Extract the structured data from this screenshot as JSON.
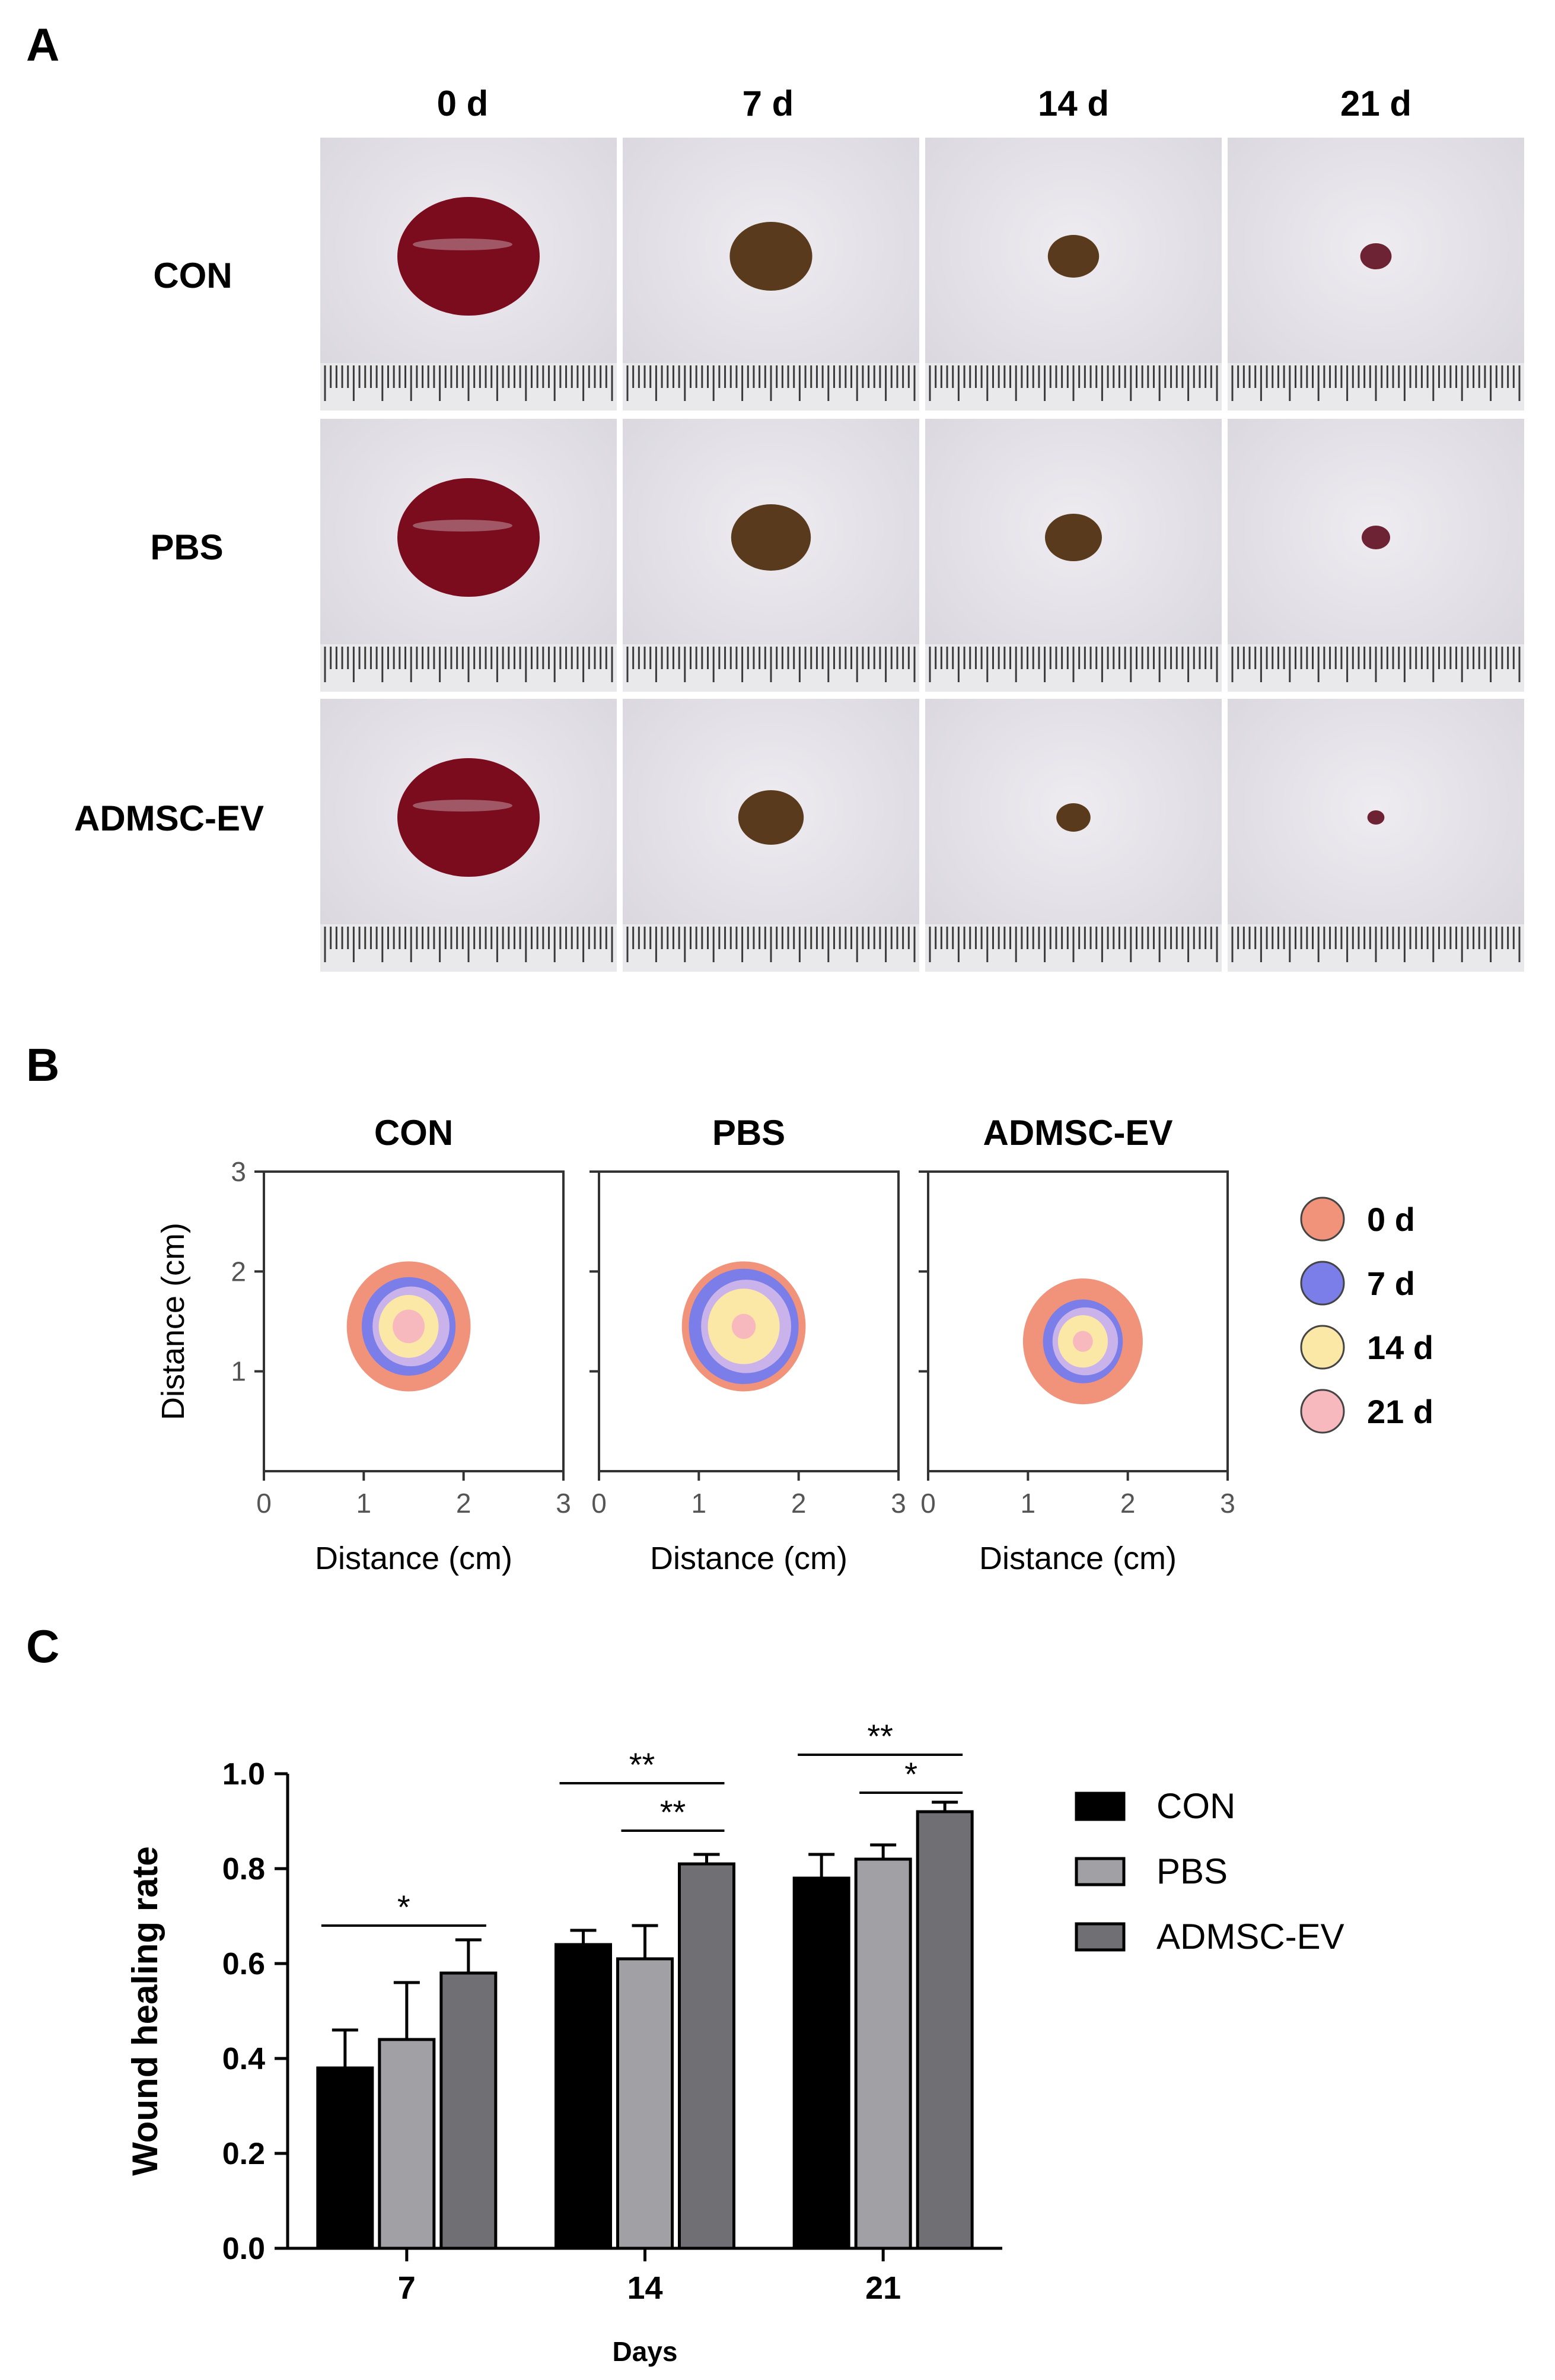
{
  "panels": {
    "a": "A",
    "b": "B",
    "c": "C"
  },
  "panel_a": {
    "columns": [
      "0 d",
      "7 d",
      "14 d",
      "21 d"
    ],
    "rows": [
      "CON",
      "PBS",
      "ADMSC-EV"
    ],
    "wound_size": [
      [
        1.0,
        0.58,
        0.36,
        0.22
      ],
      [
        1.0,
        0.56,
        0.4,
        0.2
      ],
      [
        1.0,
        0.46,
        0.24,
        0.12
      ]
    ],
    "colors": {
      "fur": "#d9d6de",
      "fresh_wound": "#7a0c1e",
      "scab": "#5a3a1c",
      "ruler": "#3a3a3a"
    }
  },
  "panel_b": {
    "groups": [
      "CON",
      "PBS",
      "ADMSC-EV"
    ],
    "xlabel": "Distance (cm)",
    "ylabel": "Distance (cm)",
    "x_ticks": [
      "0",
      "1",
      "2",
      "3"
    ],
    "y_ticks": [
      "1",
      "2",
      "3"
    ],
    "xlim": [
      0,
      3
    ],
    "ylim": [
      0,
      3
    ],
    "legend": [
      {
        "label": "0 d",
        "color": "#f0937a"
      },
      {
        "label": "7 d",
        "color": "#7b7ee8"
      },
      {
        "label": "14 d",
        "color": "#fbe7a6"
      },
      {
        "label": "21 d",
        "color": "#f7b8be"
      }
    ],
    "outlines": [
      {
        "cx": 1.45,
        "cy": 1.45,
        "radii": [
          0.62,
          0.47,
          0.3,
          0.16
        ]
      },
      {
        "cx": 1.45,
        "cy": 1.45,
        "radii": [
          0.62,
          0.55,
          0.36,
          0.12
        ]
      },
      {
        "cx": 1.55,
        "cy": 1.3,
        "radii": [
          0.6,
          0.4,
          0.25,
          0.1
        ]
      }
    ],
    "extra_fill": "#c9b3ea"
  },
  "chart_data": {
    "type": "bar",
    "categories": [
      "7",
      "14",
      "21"
    ],
    "series": [
      {
        "name": "CON",
        "values": [
          0.38,
          0.64,
          0.78
        ],
        "errors": [
          0.08,
          0.03,
          0.05
        ],
        "color": "#000000"
      },
      {
        "name": "PBS",
        "values": [
          0.44,
          0.61,
          0.82
        ],
        "errors": [
          0.12,
          0.07,
          0.03
        ],
        "color": "#a0a0a5"
      },
      {
        "name": "ADMSC-EV",
        "values": [
          0.58,
          0.81,
          0.92
        ],
        "errors": [
          0.07,
          0.02,
          0.02
        ],
        "color": "#6f6f74"
      }
    ],
    "xlabel": "Days",
    "ylabel": "Wound healing rate",
    "ylim": [
      0,
      1.0
    ],
    "y_ticks": [
      "0.0",
      "0.2",
      "0.4",
      "0.6",
      "0.8",
      "1.0"
    ],
    "legend_position": "right",
    "significance": [
      {
        "category": 0,
        "from": 0,
        "to": 2,
        "label": "*",
        "y": 0.68
      },
      {
        "category": 1,
        "from": 0,
        "to": 2,
        "label": "**",
        "y": 0.98
      },
      {
        "category": 1,
        "from": 1,
        "to": 2,
        "label": "**",
        "y": 0.88
      },
      {
        "category": 2,
        "from": 0,
        "to": 2,
        "label": "**",
        "y": 1.04
      },
      {
        "category": 2,
        "from": 1,
        "to": 2,
        "label": "*",
        "y": 0.96
      }
    ]
  }
}
